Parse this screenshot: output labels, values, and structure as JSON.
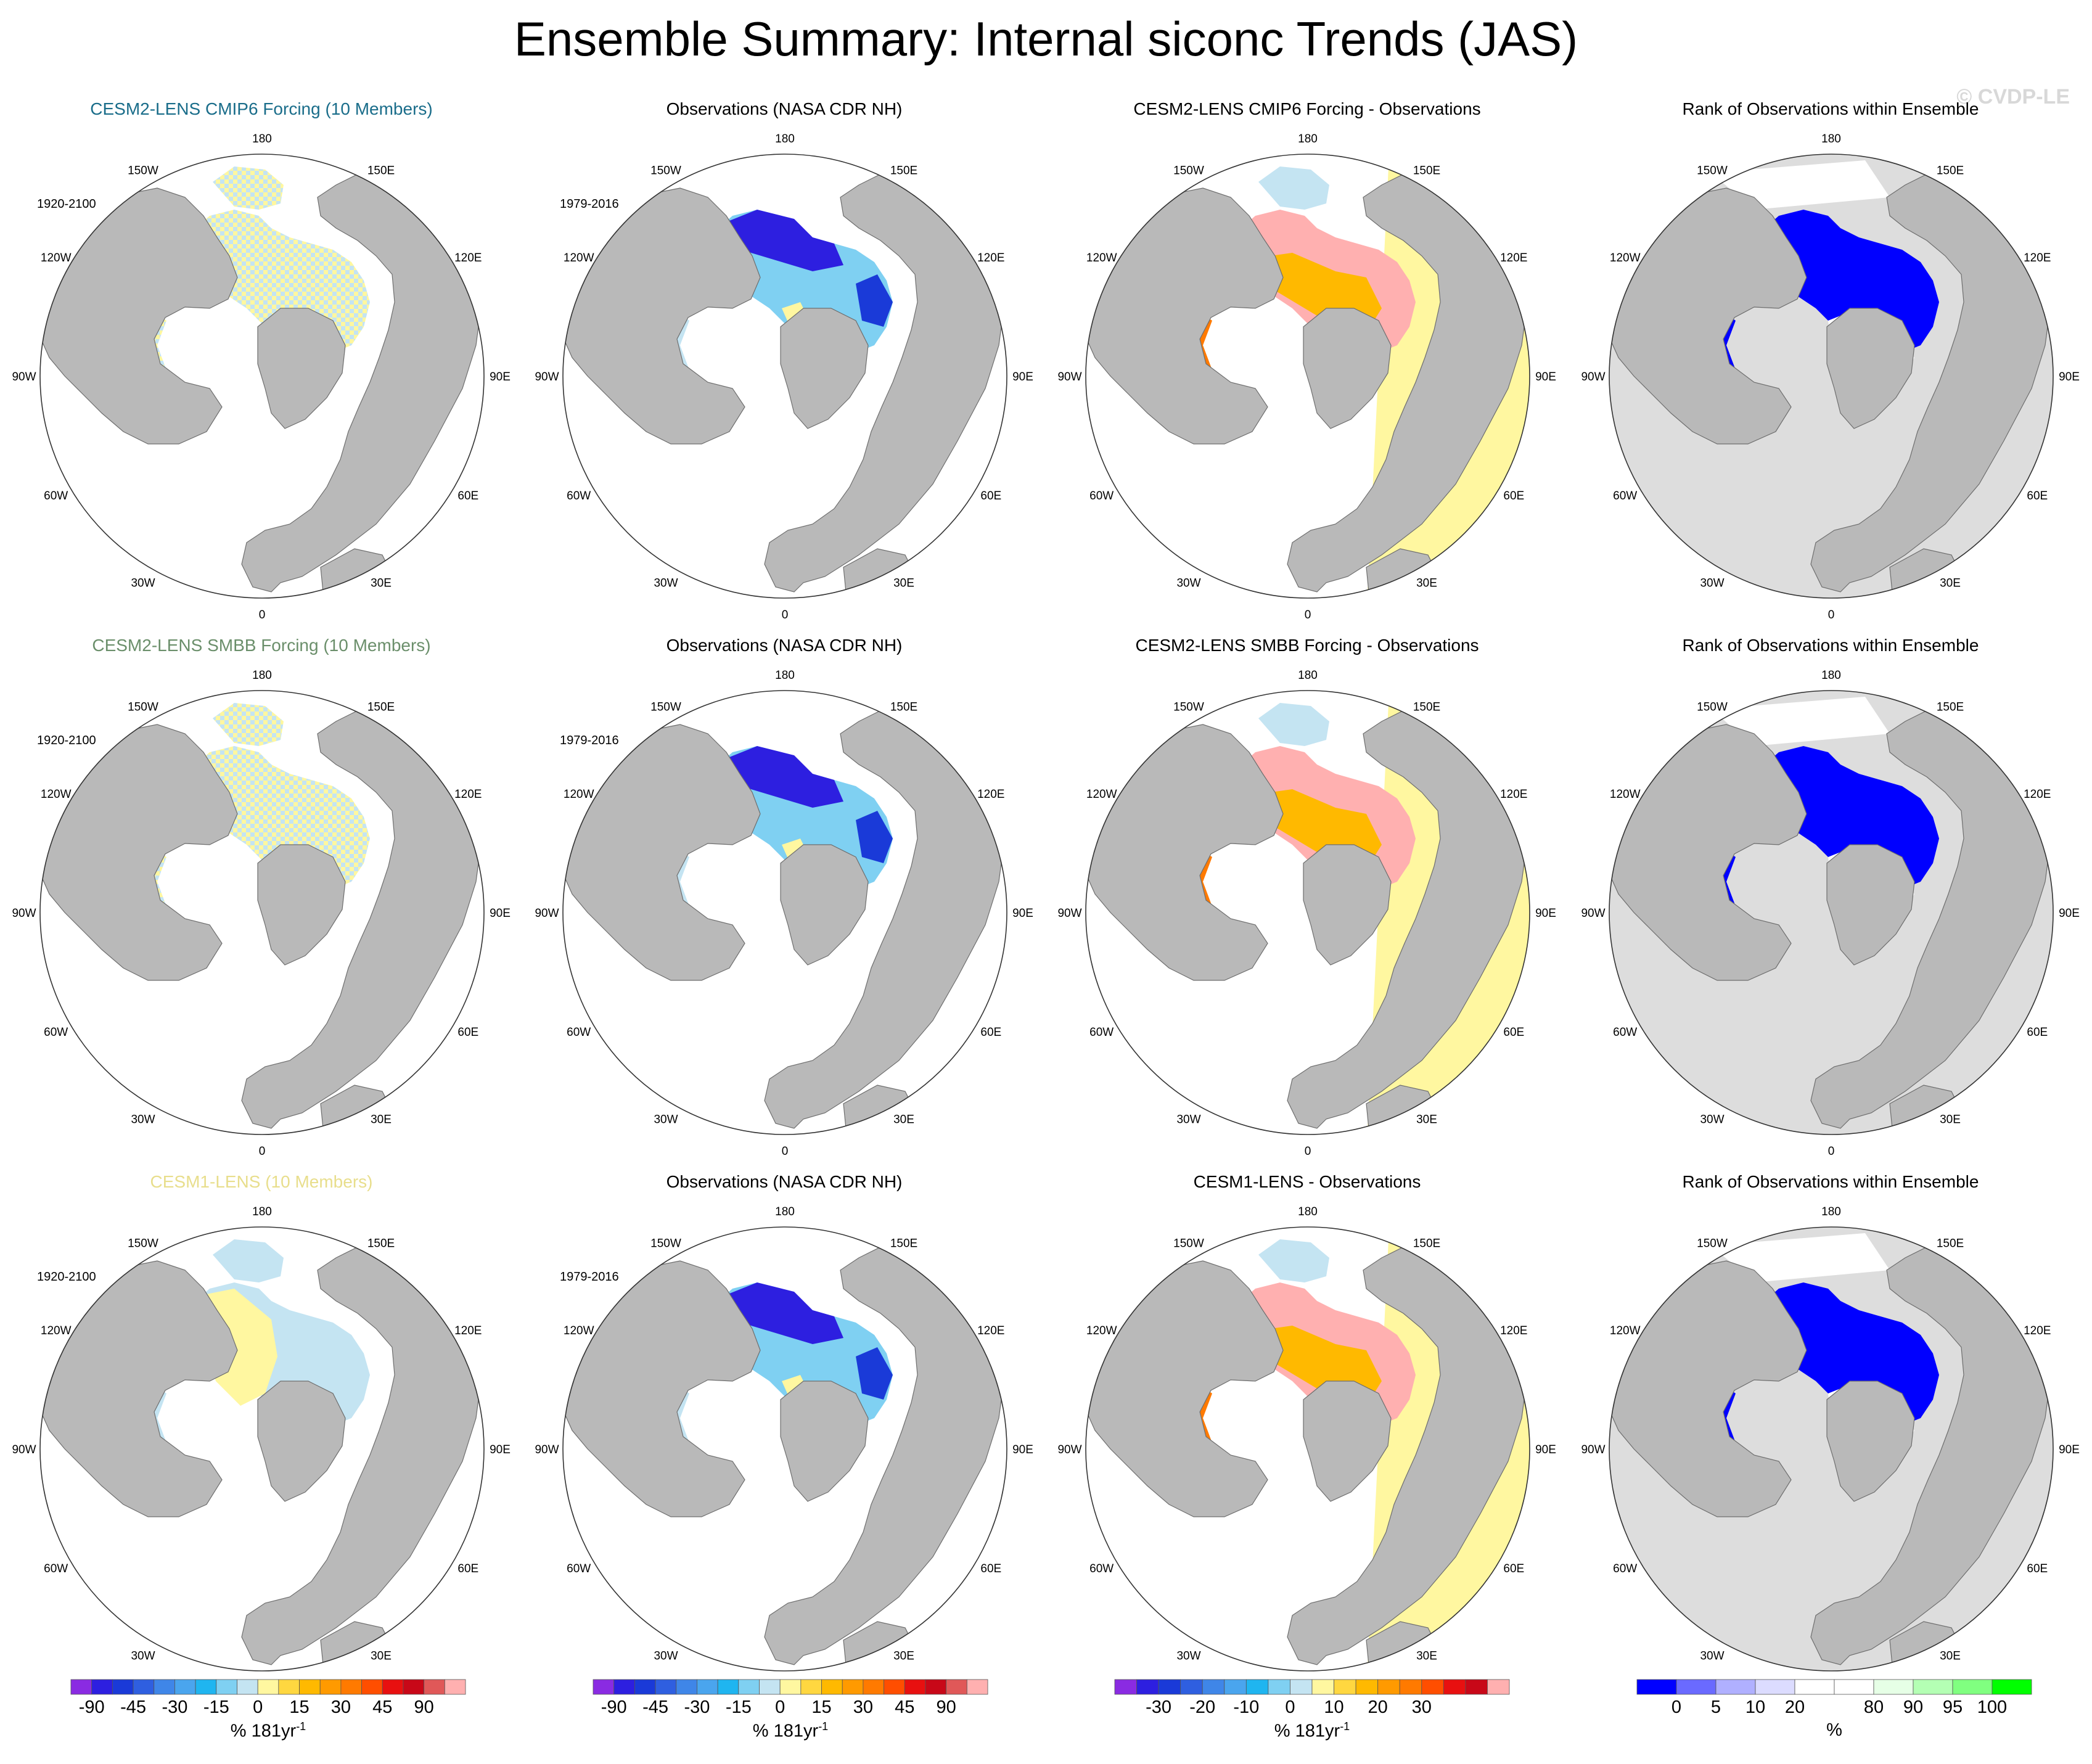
{
  "title": "Ensemble Summary: Internal siconc Trends (JAS)",
  "watermark": "© CVDP-LE",
  "colors": {
    "land": "#b9b9b9",
    "no_data_gray": "#dddddd",
    "coast": "#6e6e6e",
    "row_title_colors": [
      "#1a6d8a",
      "#6b8f6b",
      "#e8de8c"
    ]
  },
  "lon_labels": {
    "top": "180",
    "bottom": "0",
    "upper_left": "150W",
    "upper_right": "150E",
    "mid_upper_left": "120W",
    "mid_upper_right": "120E",
    "left": "90W",
    "right": "90E",
    "mid_lower_left": "60W",
    "mid_lower_right": "60E",
    "lower_left": "30W",
    "lower_right": "30E"
  },
  "panels": [
    {
      "row": 0,
      "col": 0,
      "title": "CESM2-LENS CMIP6 Forcing (10 Members)",
      "period": "1920-2100",
      "fill": "ensemble"
    },
    {
      "row": 0,
      "col": 1,
      "title": "Observations (NASA CDR NH)",
      "period": "1979-2016",
      "fill": "obs"
    },
    {
      "row": 0,
      "col": 2,
      "title": "CESM2-LENS CMIP6 Forcing - Observations",
      "period": "",
      "fill": "diff"
    },
    {
      "row": 0,
      "col": 3,
      "title": "Rank of Observations within Ensemble",
      "period": "",
      "fill": "rank"
    },
    {
      "row": 1,
      "col": 0,
      "title": "CESM2-LENS SMBB Forcing (10 Members)",
      "period": "1920-2100",
      "fill": "ensemble"
    },
    {
      "row": 1,
      "col": 1,
      "title": "Observations (NASA CDR NH)",
      "period": "1979-2016",
      "fill": "obs"
    },
    {
      "row": 1,
      "col": 2,
      "title": "CESM2-LENS SMBB Forcing - Observations",
      "period": "",
      "fill": "diff"
    },
    {
      "row": 1,
      "col": 3,
      "title": "Rank of Observations within Ensemble",
      "period": "",
      "fill": "rank"
    },
    {
      "row": 2,
      "col": 0,
      "title": "CESM1-LENS (10 Members)",
      "period": "1920-2100",
      "fill": "ensemble1"
    },
    {
      "row": 2,
      "col": 1,
      "title": "Observations (NASA CDR NH)",
      "period": "1979-2016",
      "fill": "obs"
    },
    {
      "row": 2,
      "col": 2,
      "title": "CESM1-LENS - Observations",
      "period": "",
      "fill": "diff"
    },
    {
      "row": 2,
      "col": 3,
      "title": "Rank of Observations within Ensemble",
      "period": "",
      "fill": "rank"
    }
  ],
  "colorbars": [
    {
      "name": "trend",
      "colors": [
        "#8a2be2",
        "#2d1fe0",
        "#1a3ad8",
        "#2f5fe0",
        "#3f86e8",
        "#4aa5ee",
        "#1fb5f0",
        "#7fd0f2",
        "#c4e4f2",
        "#fff7a0",
        "#ffd740",
        "#ffb900",
        "#ff9a00",
        "#ff7a00",
        "#ff4e00",
        "#e81010",
        "#c80818",
        "#e05858",
        "#ffb0b0"
      ],
      "tick_labels": [
        "-90",
        "-45",
        "-30",
        "-15",
        "0",
        "15",
        "30",
        "45",
        "90"
      ],
      "tick_index": [
        1,
        3,
        5,
        7,
        9,
        11,
        13,
        15,
        17
      ],
      "units": "% 181yr",
      "units_sup": "-1"
    },
    {
      "name": "trend",
      "colors": [
        "#8a2be2",
        "#2d1fe0",
        "#1a3ad8",
        "#2f5fe0",
        "#3f86e8",
        "#4aa5ee",
        "#1fb5f0",
        "#7fd0f2",
        "#c4e4f2",
        "#fff7a0",
        "#ffd740",
        "#ffb900",
        "#ff9a00",
        "#ff7a00",
        "#ff4e00",
        "#e81010",
        "#c80818",
        "#e05858",
        "#ffb0b0"
      ],
      "tick_labels": [
        "-90",
        "-45",
        "-30",
        "-15",
        "0",
        "15",
        "30",
        "45",
        "90"
      ],
      "tick_index": [
        1,
        3,
        5,
        7,
        9,
        11,
        13,
        15,
        17
      ],
      "units": "% 181yr",
      "units_sup": "-1"
    },
    {
      "name": "diff",
      "colors": [
        "#8a2be2",
        "#2d1fe0",
        "#1a3ad8",
        "#2f5fe0",
        "#3f86e8",
        "#4aa5ee",
        "#1fb5f0",
        "#7fd0f2",
        "#c4e4f2",
        "#fff7a0",
        "#ffd740",
        "#ffb900",
        "#ff9a00",
        "#ff7a00",
        "#ff4e00",
        "#e81010",
        "#c80818",
        "#ffb0b0"
      ],
      "tick_labels": [
        "-30",
        "-20",
        "-10",
        "0",
        "10",
        "20",
        "30"
      ],
      "tick_index": [
        2,
        4,
        6,
        8,
        10,
        12,
        14
      ],
      "units": "% 181yr",
      "units_sup": "-1"
    },
    {
      "name": "rank",
      "colors": [
        "#0000ff",
        "#6a6aff",
        "#b0b0ff",
        "#dcdcff",
        "#ffffff",
        "#ffffff",
        "#e6ffe6",
        "#b4ffb4",
        "#80ff80",
        "#00ff00"
      ],
      "tick_labels": [
        "0",
        "5",
        "10",
        "20",
        "80",
        "90",
        "95",
        "100"
      ],
      "tick_index": [
        1,
        2,
        3,
        4,
        6,
        7,
        8,
        9
      ],
      "units": "%",
      "units_sup": ""
    }
  ],
  "chart_data": {
    "type": "heatmap",
    "title": "Ensemble Summary: Internal siconc Trends (JAS)",
    "projection": "north polar stereographic",
    "variable": "siconc trend, July-September",
    "trend_colorbar_levels": [
      -90,
      -45,
      -30,
      -15,
      0,
      15,
      30,
      45,
      90
    ],
    "diff_colorbar_levels": [
      -30,
      -20,
      -10,
      0,
      10,
      20,
      30
    ],
    "rank_colorbar_levels": [
      0,
      5,
      10,
      20,
      80,
      90,
      95,
      100
    ]
  }
}
